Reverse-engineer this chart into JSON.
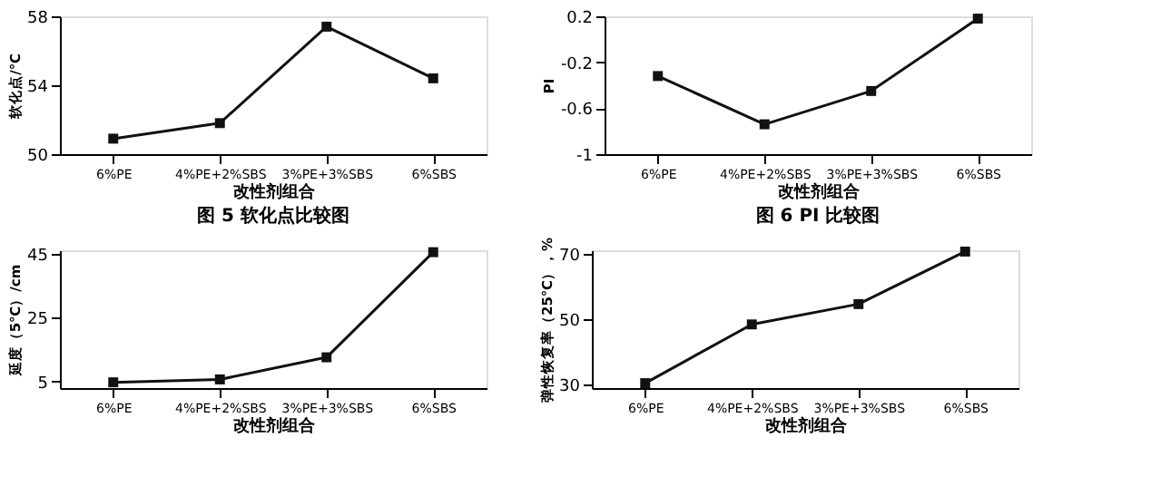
{
  "chart_data": [
    {
      "type": "line",
      "title": "图 5  软化点比较图",
      "xlabel": "改性剂组合",
      "ylabel": "软化点/℃",
      "categories": [
        "6%PE",
        "4%PE+2%SBS",
        "3%PE+3%SBS",
        "6%SBS"
      ],
      "values": [
        50.9,
        51.8,
        57.4,
        54.4
      ],
      "color": "#111111",
      "ylim": [
        50,
        58
      ],
      "yticks": [
        50,
        54,
        58
      ],
      "marker": "square",
      "grid": false
    },
    {
      "type": "line",
      "title": "图 6  PI 比较图",
      "xlabel": "改性剂组合",
      "ylabel": "PI",
      "categories": [
        "6%PE",
        "4%PE+2%SBS",
        "3%PE+3%SBS",
        "6%SBS"
      ],
      "values": [
        -0.32,
        -0.74,
        -0.45,
        0.18
      ],
      "color": "#111111",
      "ylim": [
        -1,
        0.2
      ],
      "yticks": [
        {
          "value": -1,
          "label": "-1"
        },
        {
          "value": -0.6,
          "label": "-0.6"
        },
        {
          "value": -0.2,
          "label": "-0.2"
        },
        {
          "value": 0.2,
          "label": "0.2"
        }
      ],
      "marker": "square",
      "grid": false
    },
    {
      "type": "line",
      "xlabel": "改性剂组合",
      "ylabel": "延度（5℃）/cm",
      "categories": [
        "6%PE",
        "4%PE+2%SBS",
        "3%PE+3%SBS",
        "6%SBS"
      ],
      "values": [
        4.8,
        5.7,
        12.6,
        45.4
      ],
      "color": "#111111",
      "ylim": [
        3,
        46
      ],
      "yticks": [
        5,
        25,
        45
      ],
      "marker": "square",
      "grid": false
    },
    {
      "type": "line",
      "xlabel": "改性剂组合",
      "ylabel": "弹性恢复率（25℃），%",
      "categories": [
        "6%PE",
        "4%PE+2%SBS",
        "3%PE+3%SBS",
        "6%SBS"
      ],
      "values": [
        30.5,
        48.4,
        54.6,
        70.6
      ],
      "color": "#111111",
      "ylim": [
        29,
        71
      ],
      "yticks": [
        30,
        50,
        70
      ],
      "marker": "square",
      "grid": false
    }
  ]
}
